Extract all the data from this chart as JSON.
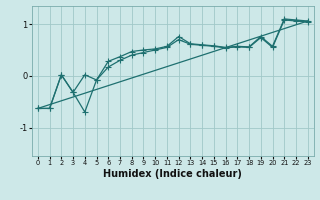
{
  "title": "",
  "xlabel": "Humidex (Indice chaleur)",
  "bg_color": "#cde8e8",
  "grid_color": "#a0c8c8",
  "line_color": "#1e7070",
  "xlim": [
    -0.5,
    23.5
  ],
  "ylim": [
    -1.55,
    1.35
  ],
  "xticks": [
    0,
    1,
    2,
    3,
    4,
    5,
    6,
    7,
    8,
    9,
    10,
    11,
    12,
    13,
    14,
    15,
    16,
    17,
    18,
    19,
    20,
    21,
    22,
    23
  ],
  "yticks": [
    -1,
    0,
    1
  ],
  "line1_x": [
    0,
    1,
    2,
    3,
    4,
    5,
    6,
    7,
    8,
    9,
    10,
    11,
    12,
    13,
    14,
    15,
    16,
    17,
    18,
    19,
    20,
    21,
    22,
    23
  ],
  "line1_y": [
    -0.63,
    -0.63,
    0.02,
    -0.32,
    0.02,
    -0.08,
    0.28,
    0.37,
    0.47,
    0.5,
    0.52,
    0.57,
    0.76,
    0.62,
    0.6,
    0.58,
    0.55,
    0.57,
    0.56,
    0.76,
    0.57,
    1.1,
    1.08,
    1.06
  ],
  "line2_x": [
    0,
    1,
    2,
    3,
    4,
    5,
    6,
    7,
    8,
    9,
    10,
    11,
    12,
    13,
    14,
    15,
    16,
    17,
    18,
    19,
    20,
    21,
    22,
    23
  ],
  "line2_y": [
    -0.63,
    -0.63,
    0.02,
    -0.32,
    -0.7,
    -0.08,
    0.17,
    0.3,
    0.4,
    0.45,
    0.5,
    0.55,
    0.7,
    0.61,
    0.59,
    0.57,
    0.54,
    0.56,
    0.55,
    0.74,
    0.55,
    1.08,
    1.06,
    1.04
  ],
  "line3_x": [
    0,
    23
  ],
  "line3_y": [
    -0.63,
    1.06
  ],
  "marker": "+",
  "marker_size": 4,
  "linewidth": 0.9
}
